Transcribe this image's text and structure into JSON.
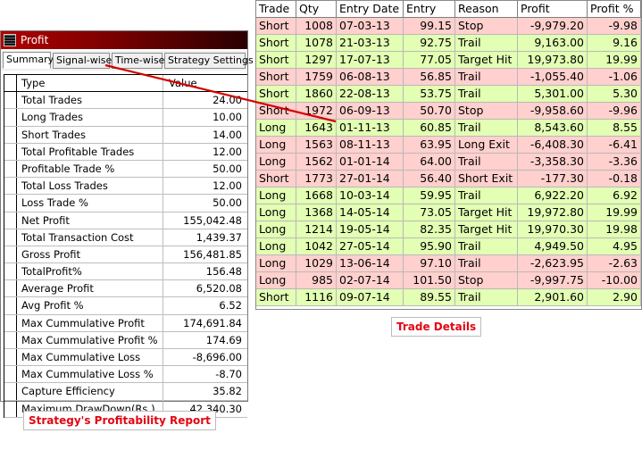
{
  "profit_window": {
    "title": "Profit",
    "tabs": [
      "Summary",
      "Signal-wise",
      "Time-wise",
      "Strategy Settings"
    ],
    "active_tab": "Summary",
    "grid_header": {
      "type": "Type",
      "value": "Value"
    },
    "rows": [
      {
        "type": "Total Trades",
        "value": "24.00"
      },
      {
        "type": "Long Trades",
        "value": "10.00"
      },
      {
        "type": "Short Trades",
        "value": "14.00"
      },
      {
        "type": "Total Profitable Trades",
        "value": "12.00"
      },
      {
        "type": "Profitable Trade %",
        "value": "50.00"
      },
      {
        "type": "Total Loss Trades",
        "value": "12.00"
      },
      {
        "type": "Loss Trade %",
        "value": "50.00"
      },
      {
        "type": "Net Profit",
        "value": "155,042.48"
      },
      {
        "type": "Total Transaction Cost",
        "value": "1,439.37"
      },
      {
        "type": "Gross Profit",
        "value": "156,481.85"
      },
      {
        "type": "TotalProfit%",
        "value": "156.48"
      },
      {
        "type": "Average Profit",
        "value": "6,520.08"
      },
      {
        "type": "Avg Profit %",
        "value": "6.52"
      },
      {
        "type": "Max Cummulative Profit",
        "value": "174,691.84"
      },
      {
        "type": "Max Cummulative Profit %",
        "value": "174.69"
      },
      {
        "type": "Max Cummulative Loss",
        "value": "-8,696.00"
      },
      {
        "type": "Max Cummulative Loss %",
        "value": "-8.70"
      },
      {
        "type": "Capture Efficiency",
        "value": "35.82"
      },
      {
        "type": "Maximum DrawDown(Rs.)",
        "value": "42,340.30"
      }
    ]
  },
  "trade_table": {
    "headers": [
      "Trade",
      "Qty",
      "Entry Date",
      "Entry",
      "Reason",
      "Profit",
      "Profit %"
    ],
    "rows": [
      {
        "trade": "Short",
        "qty": "1008",
        "date": "07-03-13",
        "entry": "99.15",
        "reason": "Stop",
        "profit": "-9,979.20",
        "pct": "-9.98",
        "status": "loss"
      },
      {
        "trade": "Short",
        "qty": "1078",
        "date": "21-03-13",
        "entry": "92.75",
        "reason": "Trail",
        "profit": "9,163.00",
        "pct": "9.16",
        "status": "win"
      },
      {
        "trade": "Short",
        "qty": "1297",
        "date": "17-07-13",
        "entry": "77.05",
        "reason": "Target Hit",
        "profit": "19,973.80",
        "pct": "19.99",
        "status": "win"
      },
      {
        "trade": "Short",
        "qty": "1759",
        "date": "06-08-13",
        "entry": "56.85",
        "reason": "Trail",
        "profit": "-1,055.40",
        "pct": "-1.06",
        "status": "loss"
      },
      {
        "trade": "Short",
        "qty": "1860",
        "date": "22-08-13",
        "entry": "53.75",
        "reason": "Trail",
        "profit": "5,301.00",
        "pct": "5.30",
        "status": "win"
      },
      {
        "trade": "Short",
        "qty": "1972",
        "date": "06-09-13",
        "entry": "50.70",
        "reason": "Stop",
        "profit": "-9,958.60",
        "pct": "-9.96",
        "status": "loss"
      },
      {
        "trade": "Long",
        "qty": "1643",
        "date": "01-11-13",
        "entry": "60.85",
        "reason": "Trail",
        "profit": "8,543.60",
        "pct": "8.55",
        "status": "win"
      },
      {
        "trade": "Long",
        "qty": "1563",
        "date": "08-11-13",
        "entry": "63.95",
        "reason": "Long Exit",
        "profit": "-6,408.30",
        "pct": "-6.41",
        "status": "loss"
      },
      {
        "trade": "Long",
        "qty": "1562",
        "date": "01-01-14",
        "entry": "64.00",
        "reason": "Trail",
        "profit": "-3,358.30",
        "pct": "-3.36",
        "status": "loss"
      },
      {
        "trade": "Short",
        "qty": "1773",
        "date": "27-01-14",
        "entry": "56.40",
        "reason": "Short Exit",
        "profit": "-177.30",
        "pct": "-0.18",
        "status": "loss"
      },
      {
        "trade": "Long",
        "qty": "1668",
        "date": "10-03-14",
        "entry": "59.95",
        "reason": "Trail",
        "profit": "6,922.20",
        "pct": "6.92",
        "status": "win"
      },
      {
        "trade": "Long",
        "qty": "1368",
        "date": "14-05-14",
        "entry": "73.05",
        "reason": "Target Hit",
        "profit": "19,972.80",
        "pct": "19.99",
        "status": "win"
      },
      {
        "trade": "Long",
        "qty": "1214",
        "date": "19-05-14",
        "entry": "82.35",
        "reason": "Target Hit",
        "profit": "19,970.30",
        "pct": "19.98",
        "status": "win"
      },
      {
        "trade": "Long",
        "qty": "1042",
        "date": "27-05-14",
        "entry": "95.90",
        "reason": "Trail",
        "profit": "4,949.50",
        "pct": "4.95",
        "status": "win"
      },
      {
        "trade": "Long",
        "qty": "1029",
        "date": "13-06-14",
        "entry": "97.10",
        "reason": "Trail",
        "profit": "-2,623.95",
        "pct": "-2.63",
        "status": "loss"
      },
      {
        "trade": "Long",
        "qty": "985",
        "date": "02-07-14",
        "entry": "101.50",
        "reason": "Stop",
        "profit": "-9,997.75",
        "pct": "-10.00",
        "status": "loss"
      },
      {
        "trade": "Short",
        "qty": "1116",
        "date": "09-07-14",
        "entry": "89.55",
        "reason": "Trail",
        "profit": "2,901.60",
        "pct": "2.90",
        "status": "win"
      }
    ]
  },
  "captions": {
    "report": "Strategy's Profitability Report",
    "trades": "Trade Details"
  },
  "colors": {
    "win_row": "#e2ffb3",
    "loss_row": "#ffd0cd",
    "caption_text": "#e30613",
    "connector_line": "#d40000",
    "titlebar_start": "#b00000",
    "titlebar_end": "#2a0000"
  },
  "icons": {
    "app_icon": "grid-app-icon"
  }
}
